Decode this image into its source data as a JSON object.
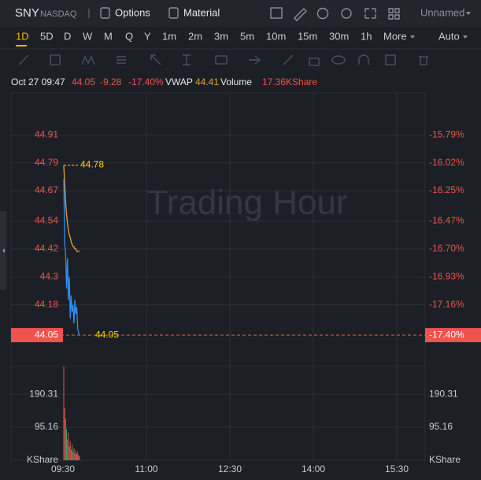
{
  "toolbar": {
    "symbol": "SNY",
    "exchange": "NASDAQ",
    "options": "Options",
    "material": "Material",
    "layout": "Unnamed"
  },
  "periods": [
    "1D",
    "5D",
    "D",
    "W",
    "M",
    "Q",
    "Y",
    "1m",
    "2m",
    "3m",
    "5m",
    "10m",
    "15m",
    "30m",
    "1h",
    "More"
  ],
  "active_period": "1D",
  "auto": "Auto",
  "info": {
    "time": "Oct 27 09:47",
    "price": "44.05",
    "change": "-9.28",
    "change_pct": "-17.40%",
    "vwap_label": "VWAP",
    "vwap": "44.41",
    "volume_label": "Volume",
    "volume": "17.36KShare"
  },
  "chart": {
    "watermark": "Trading Hour",
    "ylim": [
      43.915,
      45.09
    ],
    "yticks": [
      44.91,
      44.79,
      44.67,
      44.54,
      44.42,
      44.3,
      44.18
    ],
    "pct_ticks": [
      "-15.79%",
      "-16.02%",
      "-16.25%",
      "-16.47%",
      "-16.70%",
      "-16.93%",
      "-17.16%"
    ],
    "last_price": 44.05,
    "last_pct": "-17.40%",
    "high_label": 44.78,
    "xticks": [
      "09:30",
      "11:00",
      "12:30",
      "14:00",
      "15:30"
    ],
    "price_color": "#2f8ff0",
    "vwap_color": "#e8a13a",
    "price_line": [
      44.72,
      44.45,
      44.4,
      44.25,
      44.38,
      44.2,
      44.3,
      44.12,
      44.22,
      44.15,
      44.18,
      44.1,
      44.2,
      44.14,
      44.17,
      44.08,
      44.06,
      44.05
    ],
    "vwap_line": [
      44.78,
      44.7,
      44.62,
      44.57,
      44.53,
      44.5,
      44.48,
      44.47,
      44.45,
      44.44,
      44.43,
      44.43,
      44.42,
      44.42,
      44.41,
      44.41,
      44.41,
      44.41
    ],
    "volume_ylim": [
      0,
      270
    ],
    "volume_ticks": [
      190.31,
      95.16
    ],
    "volume_unit": "KShare",
    "volume": [
      270,
      150,
      120,
      90,
      60,
      80,
      40,
      55,
      30,
      45,
      25,
      35,
      20,
      30,
      18,
      25,
      15,
      12
    ],
    "volume_colors": [
      "#e0504f",
      "#e0504f",
      "#e0504f",
      "#3fa86a",
      "#e0504f",
      "#e0504f",
      "#3fa86a",
      "#e0504f",
      "#e0504f",
      "#3fa86a",
      "#e0504f",
      "#e0504f",
      "#3fa86a",
      "#e0504f",
      "#e0504f",
      "#3fa86a",
      "#e0504f",
      "#e0504f"
    ]
  }
}
